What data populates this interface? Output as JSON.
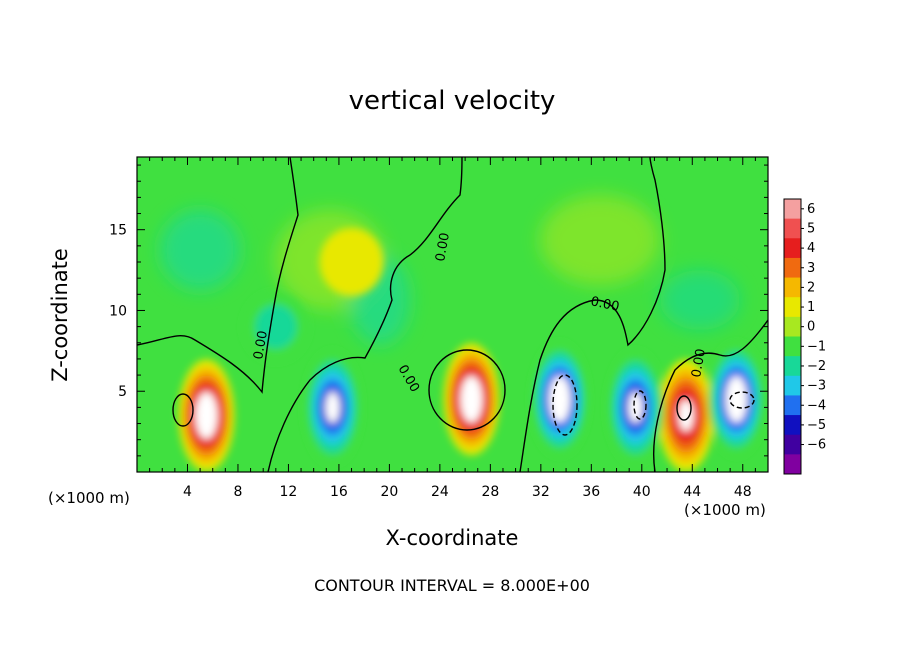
{
  "chart_data": {
    "type": "heatmap",
    "title": "vertical velocity",
    "xlabel": "X-coordinate",
    "ylabel": "Z-coordinate",
    "x_unit": "(×1000 m)",
    "x_ticks": [
      4,
      8,
      12,
      16,
      20,
      24,
      28,
      32,
      36,
      40,
      44,
      48
    ],
    "y_ticks": [
      5,
      10,
      15
    ],
    "xlim": [
      0,
      50
    ],
    "ylim": [
      0,
      19.5
    ],
    "contour_interval_text": "CONTOUR INTERVAL = 8.000E+00",
    "contour_labels": [
      "0.00",
      "0.00",
      "0.00",
      "0.00",
      "0.00",
      "0.00"
    ],
    "colorbar": {
      "labels": [
        "6",
        "5",
        "4",
        "3",
        "2",
        "1",
        "0",
        "−1",
        "−2",
        "−3",
        "−4",
        "−5",
        "−6"
      ],
      "colors": [
        "#f4a0a0",
        "#f05050",
        "#e61e1e",
        "#f06a10",
        "#f5b800",
        "#e8e800",
        "#a8e820",
        "#40e040",
        "#18d898",
        "#20c8e8",
        "#2070f0",
        "#1010c0",
        "#4000a0",
        "#8000a0"
      ]
    },
    "features": [
      {
        "kind": "updraft",
        "x": 5.5,
        "z": 3.5,
        "w": 6
      },
      {
        "kind": "updraft",
        "x": 26.5,
        "z": 4.5,
        "w": 6
      },
      {
        "kind": "updraft",
        "x": 43.5,
        "z": 3.5,
        "w": 5
      },
      {
        "kind": "downdraft",
        "x": 15.5,
        "z": 4,
        "w": -5
      },
      {
        "kind": "downdraft",
        "x": 33.5,
        "z": 4.5,
        "w": -6
      },
      {
        "kind": "downdraft",
        "x": 39.5,
        "z": 4,
        "w": -5
      },
      {
        "kind": "downdraft",
        "x": 47.5,
        "z": 4.5,
        "w": -6
      },
      {
        "kind": "weak-updraft",
        "x": 17,
        "z": 13,
        "w": 1
      },
      {
        "kind": "weak-downdraft",
        "x": 11,
        "z": 9,
        "w": -2
      }
    ]
  }
}
